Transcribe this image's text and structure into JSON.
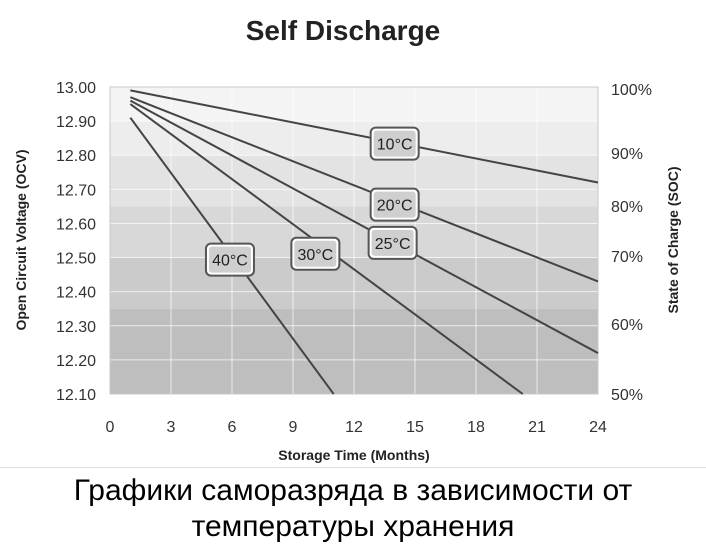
{
  "chart_data": {
    "type": "line",
    "title": "Self Discharge",
    "xlabel": "Storage Time (Months)",
    "ylabel": "Open Circuit Voltage (OCV)",
    "ylabel_right": "State of Charge (SOC)",
    "xlim": [
      0,
      24
    ],
    "ylim": [
      12.1,
      13.0
    ],
    "x_ticks": [
      "0",
      "3",
      "6",
      "9",
      "12",
      "15",
      "18",
      "21",
      "24"
    ],
    "y_ticks": [
      "12.10",
      "12.20",
      "12.30",
      "12.40",
      "12.50",
      "12.60",
      "12.70",
      "12.80",
      "12.90",
      "13.00"
    ],
    "y_right_ticks": [
      "50%",
      "60%",
      "70%",
      "80%",
      "90%",
      "100%"
    ],
    "grid": true,
    "series": [
      {
        "name": "10°C",
        "x": [
          1,
          24
        ],
        "y": [
          12.99,
          12.72
        ]
      },
      {
        "name": "20°C",
        "x": [
          1,
          24
        ],
        "y": [
          12.97,
          12.43
        ]
      },
      {
        "name": "25°C",
        "x": [
          1,
          24
        ],
        "y": [
          12.96,
          12.22
        ]
      },
      {
        "name": "30°C",
        "x": [
          1,
          20.3
        ],
        "y": [
          12.95,
          12.1
        ]
      },
      {
        "name": "40°C",
        "x": [
          1,
          11
        ],
        "y": [
          12.91,
          12.1
        ]
      }
    ]
  },
  "caption": {
    "line1": "Графики саморазряда в зависимости от",
    "line2": "температуры хранения"
  }
}
